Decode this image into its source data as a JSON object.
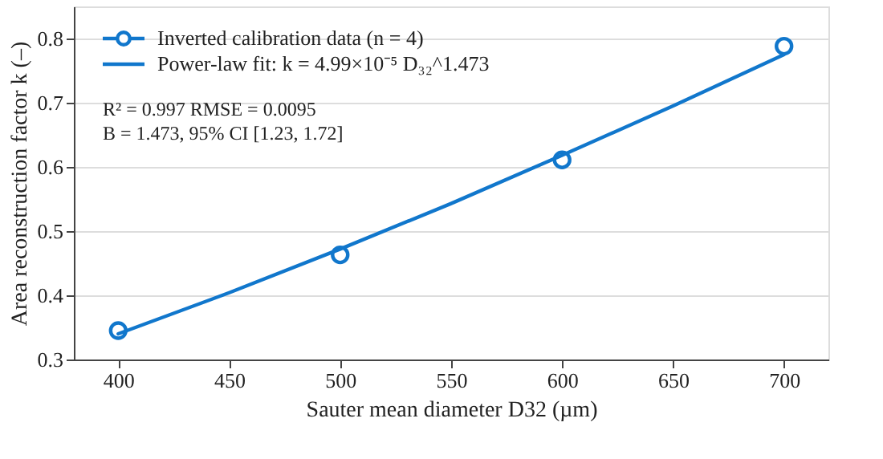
{
  "chart_data": {
    "type": "scatter",
    "xlabel": "Sauter mean diameter D32 (µm)",
    "ylabel": "Area reconstruction factor k (–)",
    "x": [
      400,
      500,
      600,
      700
    ],
    "series": [
      {
        "name": "Inverted calibration data (n = 4)",
        "color": "#1177cc",
        "marker": "circle",
        "values": [
          0.345,
          0.463,
          0.611,
          0.788
        ]
      },
      {
        "name": "Power-law fit:  k = 4.99×10⁻⁵ D₃₂^1.473",
        "color": "#1177cc",
        "type": "line",
        "marker": "none",
        "x": [
          400,
          450,
          500,
          550,
          600,
          650,
          700
        ],
        "values": [
          0.34,
          0.404,
          0.472,
          0.543,
          0.618,
          0.695,
          0.775
        ]
      }
    ],
    "annotations": [
      "R² = 0.997   RMSE = 0.0095",
      "B = 1.473, 95% CI [1.23, 1.72]"
    ],
    "xlim": [
      380,
      720
    ],
    "xticks": [
      400,
      450,
      500,
      550,
      600,
      650,
      700
    ],
    "ylim": [
      0.3,
      0.85
    ],
    "yticks": [
      0.3,
      0.4,
      0.5,
      0.6,
      0.7,
      0.8
    ],
    "grid": "y",
    "legend": "top left"
  }
}
